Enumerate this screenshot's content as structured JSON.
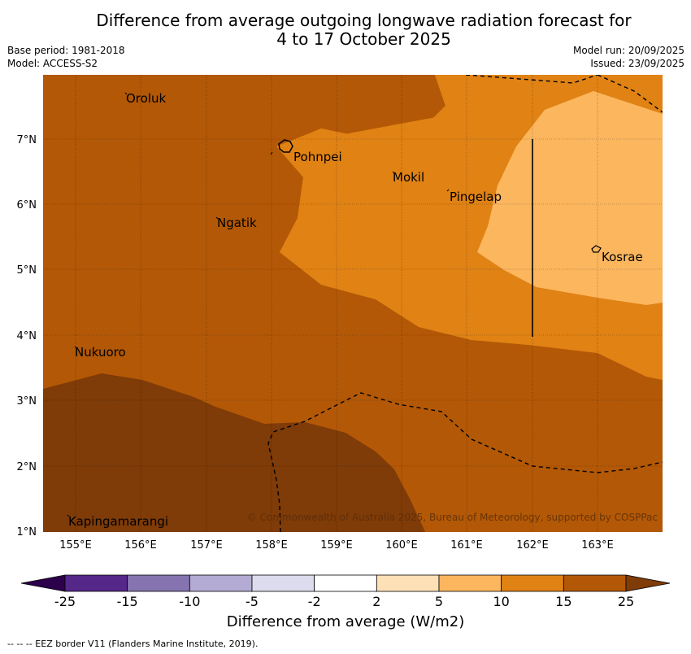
{
  "title": {
    "line1": "Difference from average outgoing longwave radiation forecast for",
    "line2": "4 to 17 October 2025"
  },
  "meta": {
    "base_period": "Base period: 1981-2018",
    "model": "Model: ACCESS-S2",
    "model_run": "Model run: 20/09/2025",
    "issued": "Issued: 23/09/2025"
  },
  "map": {
    "lon_ticks": [
      "155°E",
      "156°E",
      "157°E",
      "158°E",
      "159°E",
      "160°E",
      "161°E",
      "162°E",
      "163°E"
    ],
    "lat_ticks": [
      "1°N",
      "2°N",
      "3°N",
      "4°N",
      "5°N",
      "6°N",
      "7°N"
    ],
    "places": [
      {
        "name": "Oroluk"
      },
      {
        "name": "Pohnpei"
      },
      {
        "name": "Mokil"
      },
      {
        "name": "Pingelap"
      },
      {
        "name": "Ngatik"
      },
      {
        "name": "Kosrae"
      },
      {
        "name": "Nukuoro"
      },
      {
        "name": "Kapingamarangi"
      }
    ],
    "copyright": "© Commonwealth of Australia 2025, Bureau of Meteorology, supported by COSPPac"
  },
  "colorbar": {
    "ticks": [
      "-25",
      "-15",
      "-10",
      "-5",
      "-2",
      "2",
      "5",
      "10",
      "15",
      "25"
    ],
    "colors": [
      "#552789",
      "#8574b0",
      "#b3abd3",
      "#dcdcee",
      "#ffffff",
      "#fee0b6",
      "#fbb65e",
      "#e08214",
      "#b35806"
    ],
    "under_color": "#2d004b",
    "over_color": "#7f3b08",
    "label": "Difference from average (W/m2)"
  },
  "footer": "--  --  -- EEZ border V11 (Flanders Marine Institute, 2019)."
}
